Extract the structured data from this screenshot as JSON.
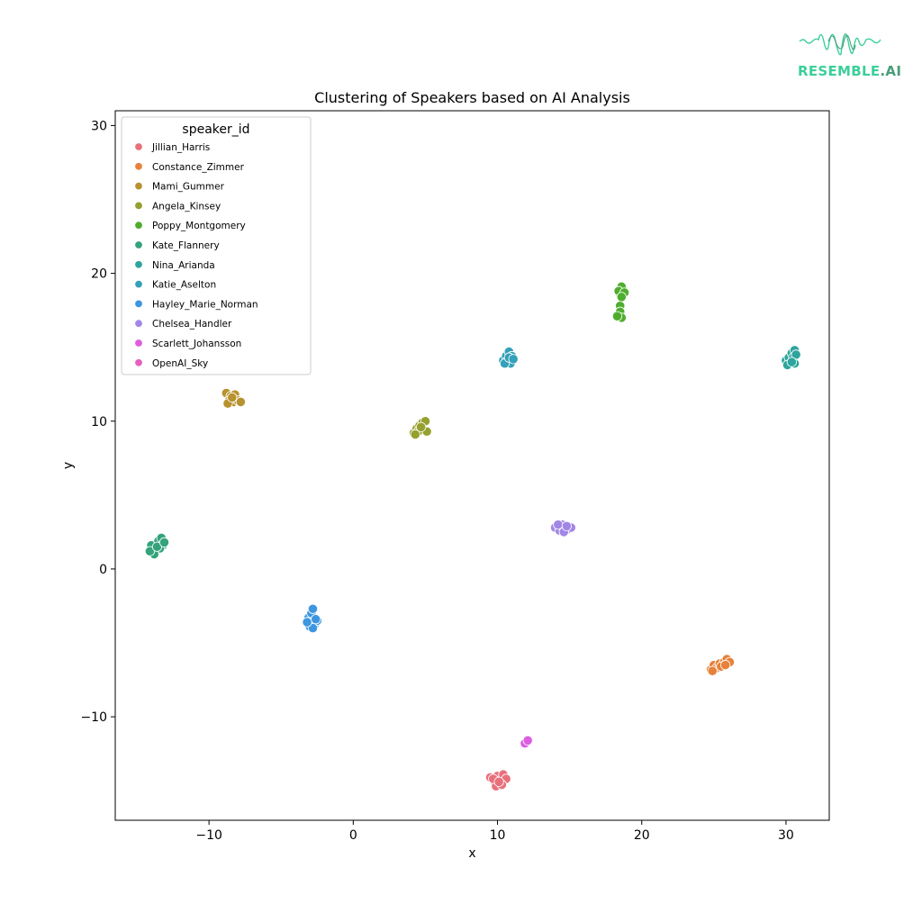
{
  "logo": {
    "text_main": "RESEMBLE",
    "text_suffix": ".AI"
  },
  "chart_data": {
    "type": "scatter",
    "title": "Clustering of Speakers based on AI Analysis",
    "xlabel": "x",
    "ylabel": "y",
    "xlim": [
      -16.5,
      33
    ],
    "ylim": [
      -17,
      31
    ],
    "xticks": [
      -10,
      0,
      10,
      20,
      30
    ],
    "yticks": [
      -10,
      0,
      10,
      20,
      30
    ],
    "xtick_labels": [
      "−10",
      "0",
      "10",
      "20",
      "30"
    ],
    "ytick_labels": [
      "−10",
      "0",
      "10",
      "20",
      "30"
    ],
    "grid": false,
    "legend": {
      "title": "speaker_id",
      "placement": "top-left"
    },
    "series": [
      {
        "name": "Jillian_Harris",
        "color": "#e8707c",
        "points": [
          [
            9.5,
            -14.1
          ],
          [
            9.8,
            -14.4
          ],
          [
            10.0,
            -14.0
          ],
          [
            10.2,
            -14.3
          ],
          [
            10.4,
            -13.9
          ],
          [
            10.6,
            -14.2
          ],
          [
            9.9,
            -14.7
          ],
          [
            10.3,
            -14.6
          ],
          [
            9.7,
            -14.2
          ],
          [
            10.1,
            -14.4
          ]
        ]
      },
      {
        "name": "Constance_Zimmer",
        "color": "#e6823a",
        "points": [
          [
            24.8,
            -6.8
          ],
          [
            25.0,
            -6.5
          ],
          [
            25.2,
            -6.7
          ],
          [
            25.4,
            -6.4
          ],
          [
            25.7,
            -6.3
          ],
          [
            25.9,
            -6.1
          ],
          [
            26.1,
            -6.3
          ],
          [
            25.5,
            -6.6
          ],
          [
            24.9,
            -6.9
          ],
          [
            25.8,
            -6.5
          ]
        ]
      },
      {
        "name": "Mami_Gummer",
        "color": "#b8922f",
        "points": [
          [
            -8.8,
            11.9
          ],
          [
            -8.5,
            11.7
          ],
          [
            -8.2,
            11.8
          ],
          [
            -8.6,
            11.4
          ],
          [
            -8.3,
            11.3
          ],
          [
            -8.0,
            11.4
          ],
          [
            -7.8,
            11.3
          ],
          [
            -8.7,
            11.2
          ],
          [
            -8.4,
            11.6
          ]
        ]
      },
      {
        "name": "Angela_Kinsey",
        "color": "#95a02f",
        "points": [
          [
            4.2,
            9.2
          ],
          [
            4.4,
            9.5
          ],
          [
            4.6,
            9.7
          ],
          [
            4.8,
            9.9
          ],
          [
            5.0,
            10.0
          ],
          [
            4.5,
            9.3
          ],
          [
            5.1,
            9.3
          ],
          [
            4.3,
            9.1
          ],
          [
            4.7,
            9.6
          ]
        ]
      },
      {
        "name": "Poppy_Montgomery",
        "color": "#4fad2e",
        "points": [
          [
            18.5,
            18.6
          ],
          [
            18.7,
            18.9
          ],
          [
            18.6,
            19.1
          ],
          [
            18.4,
            18.8
          ],
          [
            18.8,
            18.7
          ],
          [
            18.5,
            17.8
          ],
          [
            18.5,
            17.4
          ],
          [
            18.6,
            17.0
          ],
          [
            18.3,
            17.1
          ],
          [
            18.6,
            18.4
          ]
        ]
      },
      {
        "name": "Kate_Flannery",
        "color": "#34a37b",
        "points": [
          [
            -14.0,
            1.6
          ],
          [
            -13.7,
            1.3
          ],
          [
            -13.5,
            1.9
          ],
          [
            -13.3,
            2.1
          ],
          [
            -13.2,
            1.6
          ],
          [
            -13.4,
            1.4
          ],
          [
            -13.8,
            1.0
          ],
          [
            -14.1,
            1.2
          ],
          [
            -13.6,
            1.5
          ],
          [
            -13.1,
            1.8
          ]
        ]
      },
      {
        "name": "Nina_Arianda",
        "color": "#2ea59c",
        "points": [
          [
            30.0,
            14.1
          ],
          [
            30.2,
            14.3
          ],
          [
            30.4,
            14.6
          ],
          [
            30.6,
            14.8
          ],
          [
            30.5,
            14.3
          ],
          [
            30.3,
            13.9
          ],
          [
            30.7,
            14.5
          ],
          [
            30.1,
            13.8
          ],
          [
            30.6,
            13.9
          ],
          [
            30.4,
            14.0
          ]
        ]
      },
      {
        "name": "Katie_Aselton",
        "color": "#33a1b8",
        "points": [
          [
            10.4,
            14.1
          ],
          [
            10.6,
            14.4
          ],
          [
            10.8,
            14.7
          ],
          [
            11.0,
            14.4
          ],
          [
            10.7,
            14.1
          ],
          [
            10.9,
            13.9
          ],
          [
            10.5,
            13.9
          ],
          [
            10.8,
            14.3
          ],
          [
            11.1,
            14.2
          ]
        ]
      },
      {
        "name": "Hayley_Marie_Norman",
        "color": "#3d97e0",
        "points": [
          [
            -3.1,
            -3.3
          ],
          [
            -2.9,
            -3.0
          ],
          [
            -2.8,
            -2.7
          ],
          [
            -2.9,
            -3.6
          ],
          [
            -2.7,
            -3.8
          ],
          [
            -2.5,
            -3.5
          ],
          [
            -3.0,
            -3.9
          ],
          [
            -2.6,
            -3.4
          ],
          [
            -2.8,
            -4.0
          ],
          [
            -3.2,
            -3.6
          ]
        ]
      },
      {
        "name": "Chelsea_Handler",
        "color": "#a286e6",
        "points": [
          [
            14.0,
            2.8
          ],
          [
            14.3,
            2.6
          ],
          [
            14.5,
            3.0
          ],
          [
            14.7,
            2.8
          ],
          [
            14.9,
            2.7
          ],
          [
            15.1,
            2.8
          ],
          [
            14.6,
            2.5
          ],
          [
            14.2,
            3.0
          ],
          [
            14.8,
            2.9
          ]
        ]
      },
      {
        "name": "Scarlett_Johansson",
        "color": "#dd5de0",
        "points": [
          [
            11.9,
            -11.8
          ],
          [
            12.1,
            -11.6
          ]
        ]
      },
      {
        "name": "OpenAI_Sky",
        "color": "#e55fbe",
        "points": []
      }
    ]
  }
}
